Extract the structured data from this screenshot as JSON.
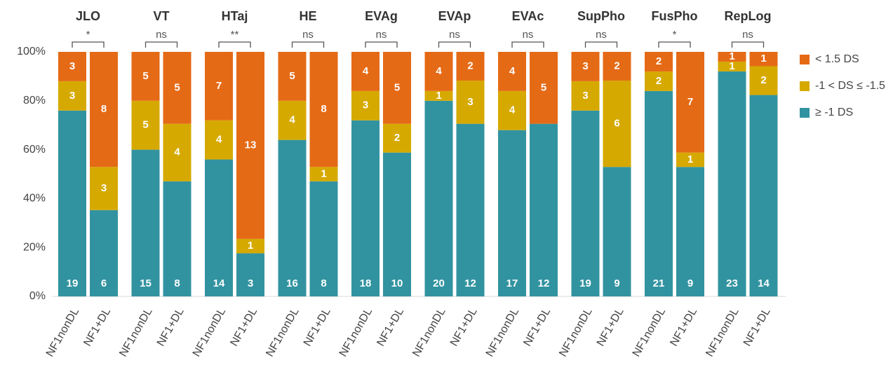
{
  "chart_data": {
    "type": "bar",
    "stacked": "percent",
    "groups": [
      "JLO",
      "VT",
      "HTaj",
      "HE",
      "EVAg",
      "EVAp",
      "EVAc",
      "SupPho",
      "FusPho",
      "RepLog"
    ],
    "significance": [
      "*",
      "ns",
      "**",
      "ns",
      "ns",
      "ns",
      "ns",
      "ns",
      "*",
      "ns"
    ],
    "categories": [
      "NF1nonDL",
      "NF1+DL",
      "NF1nonDL",
      "NF1+DL",
      "NF1nonDL",
      "NF1+DL",
      "NF1nonDL",
      "NF1+DL",
      "NF1nonDL",
      "NF1+DL",
      "NF1nonDL",
      "NF1+DL",
      "NF1nonDL",
      "NF1+DL",
      "NF1nonDL",
      "NF1+DL",
      "NF1nonDL",
      "NF1+DL",
      "NF1nonDL",
      "NF1+DL"
    ],
    "series": [
      {
        "name": "≥ -1 DS",
        "color": "#3293a0",
        "values": [
          19,
          6,
          15,
          8,
          14,
          3,
          16,
          8,
          18,
          10,
          20,
          12,
          17,
          12,
          19,
          9,
          21,
          9,
          23,
          14
        ]
      },
      {
        "name": "-1 < DS ≤ -1.5",
        "color": "#d6a900",
        "values": [
          3,
          3,
          5,
          4,
          4,
          1,
          4,
          1,
          3,
          2,
          1,
          3,
          4,
          null,
          3,
          6,
          2,
          1,
          1,
          2
        ]
      },
      {
        "name": "< 1.5 DS",
        "color": "#e56a16",
        "values": [
          3,
          8,
          5,
          5,
          7,
          13,
          5,
          8,
          4,
          5,
          4,
          2,
          4,
          5,
          3,
          2,
          2,
          7,
          1,
          1
        ]
      }
    ],
    "ylim": [
      0,
      100
    ],
    "yticks": [
      {
        "value": 0,
        "label": "0%"
      },
      {
        "value": 20,
        "label": "20%"
      },
      {
        "value": 40,
        "label": "40%"
      },
      {
        "value": 60,
        "label": "60%"
      },
      {
        "value": 80,
        "label": "80%"
      },
      {
        "value": 100,
        "label": "100%"
      }
    ],
    "legend": "right"
  }
}
